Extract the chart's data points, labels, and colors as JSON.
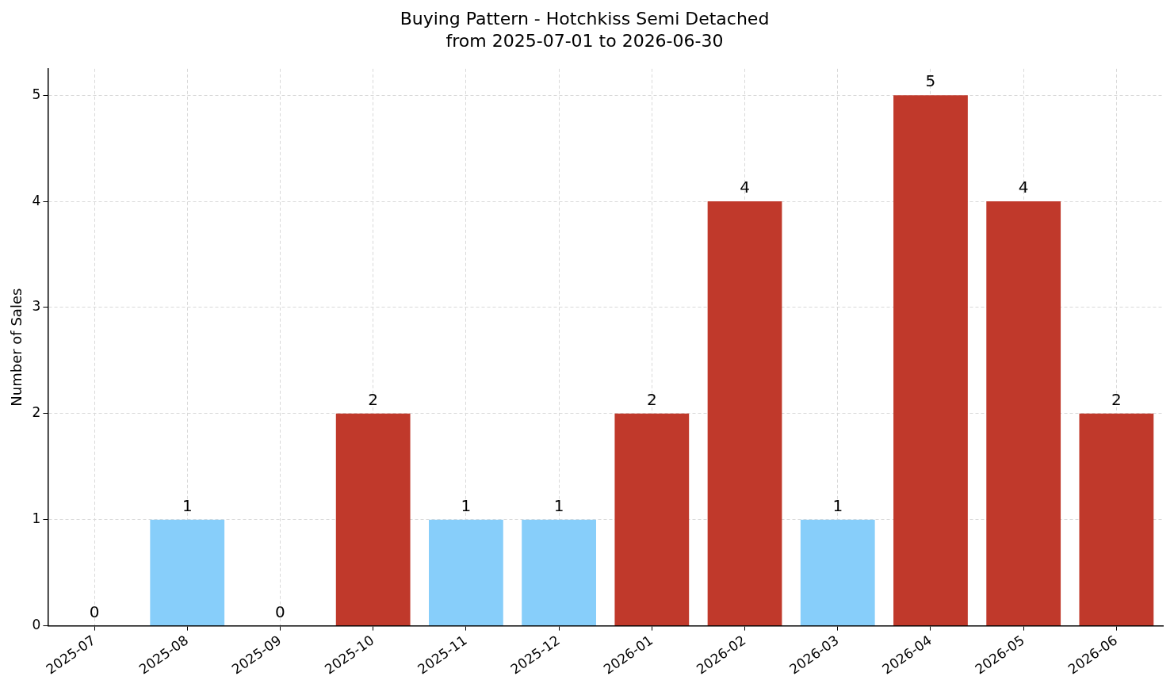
{
  "chart_data": {
    "type": "bar",
    "title": "Buying Pattern - Hotchkiss Semi Detached",
    "subtitle": "from 2025-07-01 to 2026-06-30",
    "ylabel": "Number of Sales",
    "categories": [
      "2025-07",
      "2025-08",
      "2025-09",
      "2025-10",
      "2025-11",
      "2025-12",
      "2026-01",
      "2026-02",
      "2026-03",
      "2026-04",
      "2026-05",
      "2026-06"
    ],
    "values": [
      0,
      1,
      0,
      2,
      1,
      1,
      2,
      4,
      1,
      5,
      4,
      2
    ],
    "colors": [
      "#87cefa",
      "#87cefa",
      "#87cefa",
      "#c0392b",
      "#87cefa",
      "#87cefa",
      "#c0392b",
      "#c0392b",
      "#87cefa",
      "#c0392b",
      "#c0392b",
      "#c0392b"
    ],
    "ylim": [
      0,
      5.25
    ],
    "yticks": [
      0,
      1,
      2,
      3,
      4,
      5
    ],
    "grid": true,
    "legend": false,
    "data_labels": true
  }
}
